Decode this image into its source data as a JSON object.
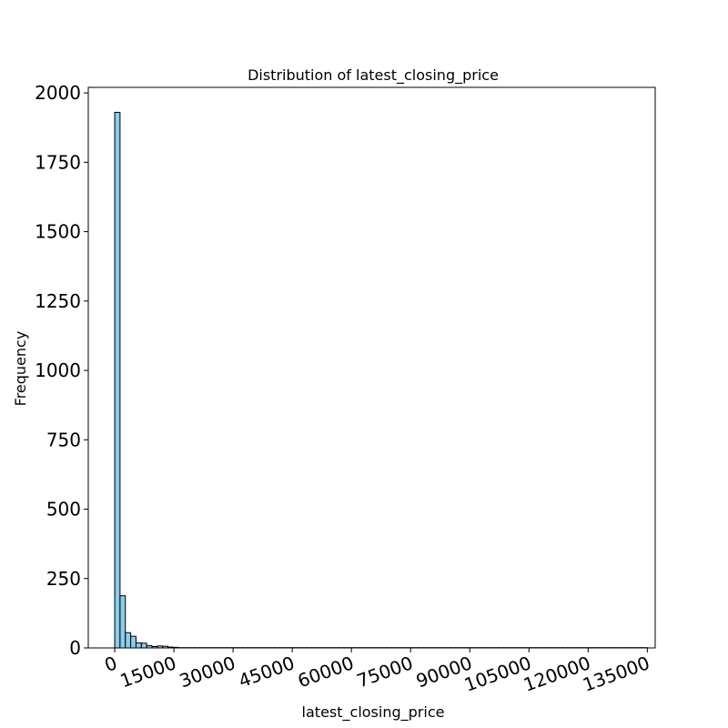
{
  "chart_data": {
    "type": "bar",
    "title": "Distribution of latest_closing_price",
    "xlabel": "latest_closing_price",
    "ylabel": "Frequency",
    "xlim": [
      -6700,
      137000
    ],
    "ylim": [
      0,
      2020
    ],
    "bar_color": "#87ceeb",
    "edge_color": "#000000",
    "grid": false,
    "x_ticks": [
      0,
      15000,
      30000,
      45000,
      60000,
      75000,
      90000,
      105000,
      120000,
      135000
    ],
    "x_tick_labels": [
      "0",
      "15000",
      "30000",
      "45000",
      "60000",
      "75000",
      "90000",
      "105000",
      "120000",
      "135000"
    ],
    "y_ticks": [
      0,
      250,
      500,
      750,
      1000,
      1250,
      1500,
      1750,
      2000
    ],
    "y_tick_labels": [
      "0",
      "250",
      "500",
      "750",
      "1000",
      "1250",
      "1500",
      "1750",
      "2000"
    ],
    "bin_start": 0,
    "bin_width": 1350,
    "values": [
      1930,
      188,
      55,
      42,
      18,
      17,
      8,
      5,
      7,
      6,
      3,
      2,
      1,
      1,
      1,
      1,
      1,
      1,
      1,
      1,
      1,
      1,
      1,
      1,
      1,
      1,
      1,
      1,
      1,
      1,
      1,
      1,
      1,
      1,
      1,
      1,
      1,
      1,
      1,
      1,
      1,
      1,
      1,
      1,
      1,
      1,
      1,
      1,
      1,
      1,
      1,
      1,
      1,
      1,
      1,
      1,
      1,
      1,
      1,
      1,
      1,
      1,
      1,
      1,
      1,
      1,
      1,
      1,
      1,
      1,
      1,
      1,
      1,
      1,
      1,
      1,
      1,
      1,
      1,
      1,
      1,
      1,
      1,
      1,
      1,
      1,
      1,
      1,
      1,
      1,
      1,
      1,
      1,
      1,
      1,
      1,
      1,
      1,
      1,
      1
    ]
  }
}
